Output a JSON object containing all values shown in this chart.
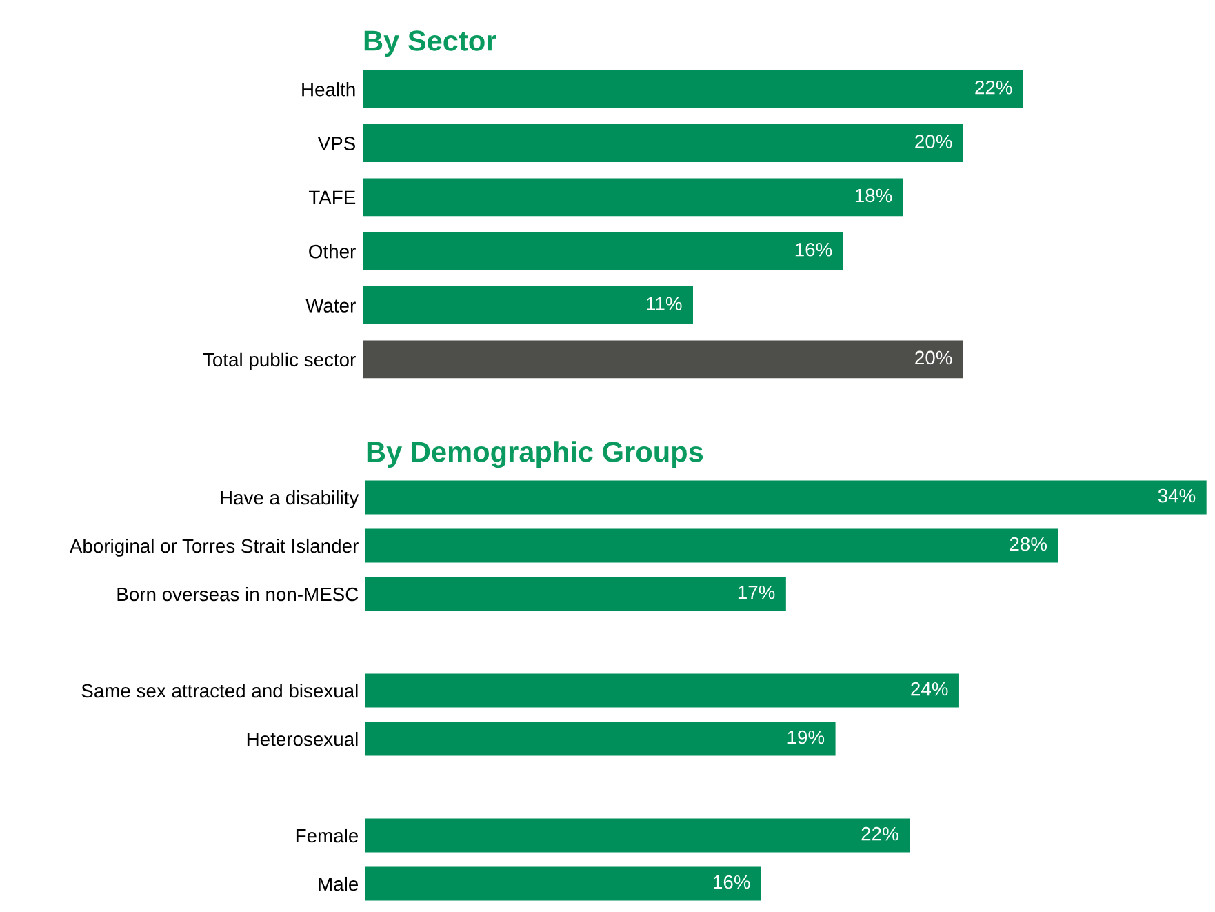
{
  "chart_data": [
    {
      "type": "bar",
      "orientation": "horizontal",
      "title": "By Sector",
      "categories": [
        "Health",
        "VPS",
        "TAFE",
        "Other",
        "Water",
        "Total public sector"
      ],
      "values": [
        22,
        20,
        18,
        16,
        11,
        20
      ],
      "colors": [
        "#008f5a",
        "#008f5a",
        "#008f5a",
        "#008f5a",
        "#008f5a",
        "#4e4e4a"
      ],
      "value_labels": [
        "22%",
        "20%",
        "18%",
        "16%",
        "11%",
        "20%"
      ],
      "grid": false,
      "legend": false,
      "tick_labels": "y"
    },
    {
      "type": "bar",
      "orientation": "horizontal",
      "title": "By Demographic Groups",
      "categories": [
        "Have a disability",
        "Aboriginal or Torres Strait Islander",
        "Born overseas in non-MESC",
        null,
        "Same sex attracted and bisexual",
        "Heterosexual",
        null,
        "Female",
        "Male"
      ],
      "values": [
        34,
        28,
        17,
        null,
        24,
        19,
        null,
        22,
        16
      ],
      "colors": [
        "#008f5a",
        "#008f5a",
        "#008f5a",
        null,
        "#008f5a",
        "#008f5a",
        null,
        "#008f5a",
        "#008f5a"
      ],
      "value_labels": [
        "34%",
        "28%",
        "17%",
        null,
        "24%",
        "19%",
        null,
        "22%",
        "16%"
      ],
      "grid": false,
      "legend": false,
      "tick_labels": "y"
    }
  ]
}
